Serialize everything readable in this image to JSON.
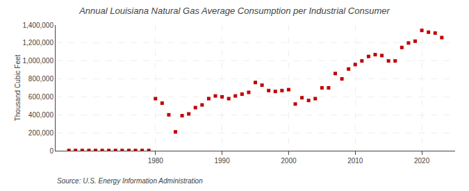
{
  "chart_data": {
    "type": "scatter",
    "title": "Annual Louisiana Natural Gas Average Consumption per Industrial Consumer",
    "ylabel": "Thousand Cubic Feet",
    "annotations": [
      "Source: U.S. Energy Information Administration"
    ],
    "x": [
      1967,
      1968,
      1969,
      1970,
      1971,
      1972,
      1973,
      1974,
      1975,
      1976,
      1977,
      1978,
      1979,
      1980,
      1981,
      1982,
      1983,
      1984,
      1985,
      1986,
      1987,
      1988,
      1989,
      1990,
      1991,
      1992,
      1993,
      1994,
      1995,
      1996,
      1997,
      1998,
      1999,
      2000,
      2001,
      2002,
      2003,
      2004,
      2005,
      2006,
      2007,
      2008,
      2009,
      2010,
      2011,
      2012,
      2013,
      2014,
      2015,
      2016,
      2017,
      2018,
      2019,
      2020,
      2021,
      2022,
      2023
    ],
    "values": [
      3000,
      3000,
      3000,
      3000,
      3000,
      3000,
      3000,
      3000,
      3000,
      3000,
      3000,
      3000,
      3000,
      580000,
      530000,
      400000,
      210000,
      390000,
      410000,
      480000,
      510000,
      580000,
      610000,
      600000,
      580000,
      610000,
      630000,
      650000,
      760000,
      730000,
      670000,
      660000,
      670000,
      680000,
      520000,
      590000,
      560000,
      580000,
      700000,
      700000,
      860000,
      800000,
      910000,
      960000,
      1000000,
      1050000,
      1070000,
      1060000,
      1000000,
      1000000,
      1150000,
      1200000,
      1220000,
      1340000,
      1320000,
      1310000,
      1260000
    ],
    "color": "#c00000",
    "marker": "square",
    "xlim": [
      1965,
      2025
    ],
    "xticks": [
      1980,
      1990,
      2000,
      2010,
      2020
    ],
    "ylim": [
      0,
      1400000
    ],
    "yticks": [
      0,
      {
        "value": 200000,
        "label": "200,000"
      },
      {
        "value": 400000,
        "label": "400,000"
      },
      {
        "value": 600000,
        "label": "600,000"
      },
      {
        "value": 800000,
        "label": "800,000"
      },
      {
        "value": 1000000,
        "label": "1,000,000"
      },
      {
        "value": 1200000,
        "label": "1,200,000"
      },
      {
        "value": 1400000,
        "label": "1,400,000"
      }
    ],
    "grid": true
  }
}
